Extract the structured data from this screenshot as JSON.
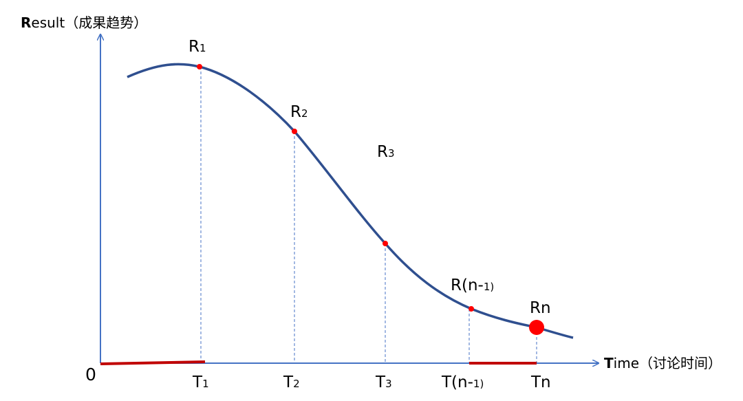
{
  "axes": {
    "y_label": {
      "bold": "R",
      "rest": "esult（成果趋势）"
    },
    "x_label": {
      "bold": "T",
      "rest": "ime（讨论时间）"
    },
    "origin": "0"
  },
  "points": [
    {
      "result": {
        "main": "R",
        "sub": "1"
      },
      "time": {
        "main": "T",
        "sub": "1"
      }
    },
    {
      "result": {
        "main": "R",
        "sub": "2"
      },
      "time": {
        "main": "T",
        "sub": "2"
      }
    },
    {
      "result": {
        "main": "R",
        "sub": "3"
      },
      "time": {
        "main": "T",
        "sub": "3"
      }
    },
    {
      "result": {
        "main": "R(n-",
        "sub": "1)"
      },
      "time": {
        "main": "T(n-",
        "sub": "1)"
      }
    },
    {
      "result": {
        "main": "Rn"
      },
      "time": {
        "main": "Tn"
      }
    }
  ]
}
